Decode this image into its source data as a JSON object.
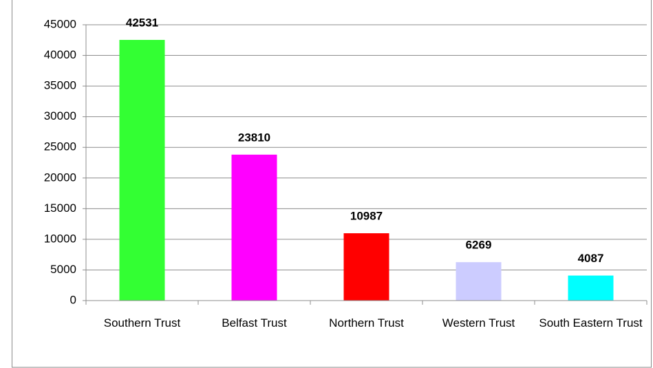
{
  "chart_data": {
    "type": "bar",
    "categories": [
      "Southern Trust",
      "Belfast Trust",
      "Northern Trust",
      "Western Trust",
      "South Eastern Trust"
    ],
    "values": [
      42531,
      23810,
      10987,
      6269,
      4087
    ],
    "colors": [
      "#33ff33",
      "#ff00ff",
      "#ff0000",
      "#ccccff",
      "#00ffff"
    ],
    "ylim": [
      0,
      45000
    ],
    "yticks": [
      0,
      5000,
      10000,
      15000,
      20000,
      25000,
      30000,
      35000,
      40000,
      45000
    ],
    "grid": true
  }
}
